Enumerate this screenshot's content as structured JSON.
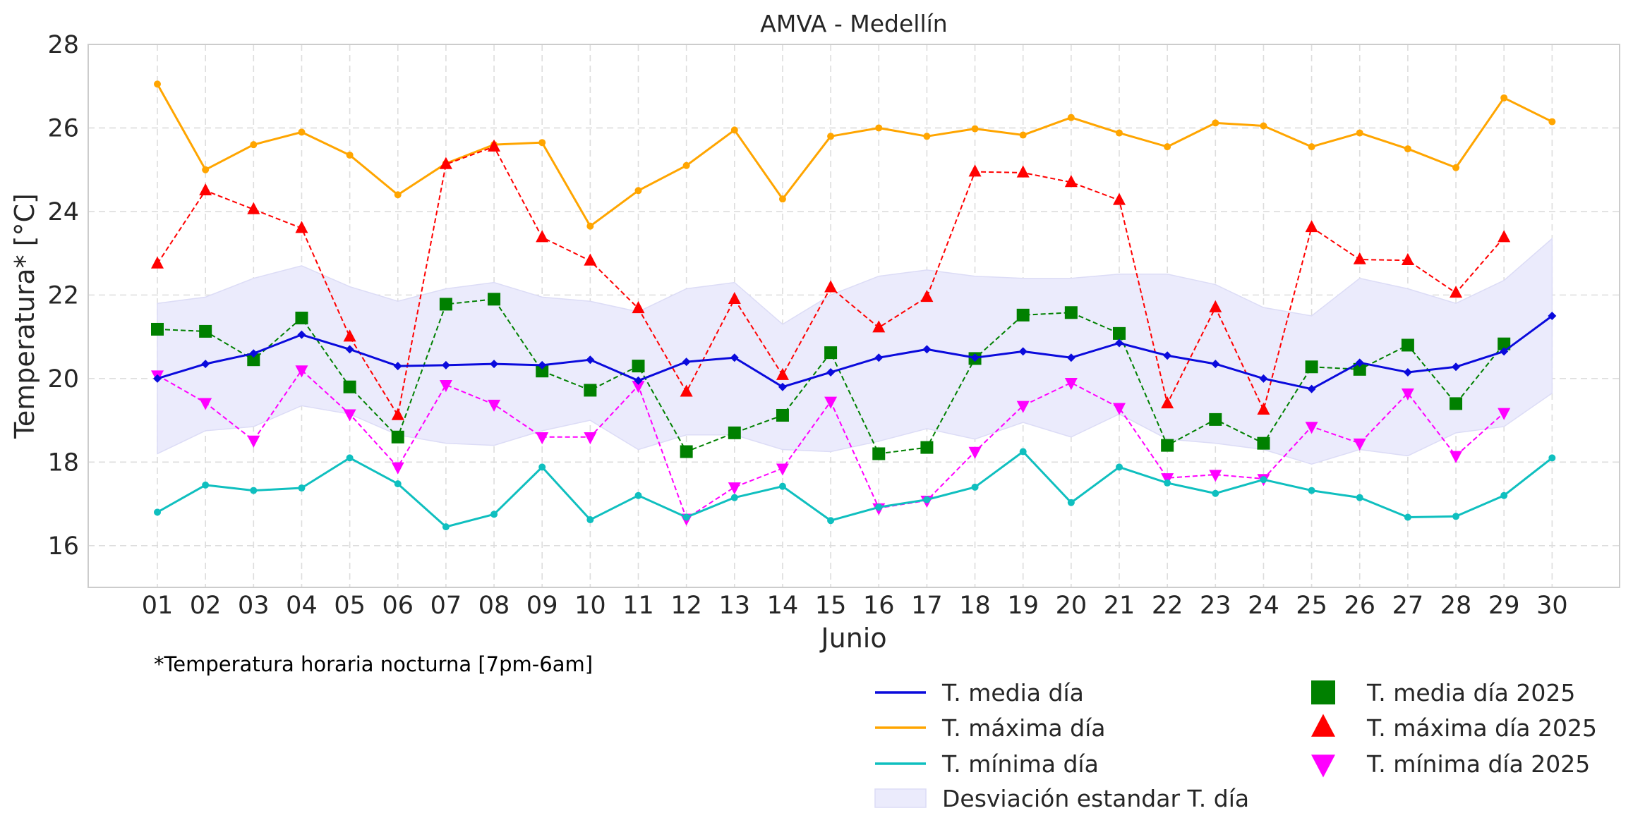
{
  "chart_data": {
    "type": "line",
    "title": "AMVA - Medellín",
    "xlabel": "Junio",
    "ylabel": "Temperatura* [°C]",
    "note": "*Temperatura horaria nocturna [7pm-6am]",
    "ylim": [
      15,
      28
    ],
    "yticks": [
      16,
      18,
      20,
      22,
      24,
      26,
      28
    ],
    "grid": true,
    "legend_position": "bottom-right, below plot",
    "categories": [
      "01",
      "02",
      "03",
      "04",
      "05",
      "06",
      "07",
      "08",
      "09",
      "10",
      "11",
      "12",
      "13",
      "14",
      "15",
      "16",
      "17",
      "18",
      "19",
      "20",
      "21",
      "22",
      "23",
      "24",
      "25",
      "26",
      "27",
      "28",
      "29",
      "30"
    ],
    "band": {
      "name": "Desviación estandar T. día",
      "color": "#ebebfc",
      "upper": [
        21.8,
        21.95,
        22.4,
        22.7,
        22.2,
        21.85,
        22.15,
        22.3,
        21.95,
        21.85,
        21.6,
        22.15,
        22.3,
        21.3,
        22.0,
        22.45,
        22.6,
        22.45,
        22.4,
        22.4,
        22.5,
        22.5,
        22.25,
        21.7,
        21.5,
        22.4,
        22.15,
        21.8,
        22.35,
        23.35
      ],
      "lower": [
        18.2,
        18.75,
        18.85,
        19.35,
        19.15,
        18.65,
        18.45,
        18.4,
        18.75,
        19.0,
        18.3,
        18.65,
        18.65,
        18.3,
        18.25,
        18.5,
        18.8,
        18.55,
        18.95,
        18.6,
        19.15,
        18.55,
        18.45,
        18.3,
        17.95,
        18.3,
        18.15,
        18.7,
        18.85,
        19.65
      ]
    },
    "series": [
      {
        "name": "T. media día",
        "color": "#0a0adc",
        "style": "solid",
        "marker": "diamond",
        "values": [
          20.0,
          20.35,
          20.6,
          21.05,
          20.7,
          20.3,
          20.32,
          20.35,
          20.32,
          20.45,
          19.95,
          20.4,
          20.5,
          19.8,
          20.15,
          20.5,
          20.7,
          20.5,
          20.65,
          20.5,
          20.85,
          20.55,
          20.35,
          20.0,
          19.75,
          20.38,
          20.15,
          20.28,
          20.65,
          21.5
        ]
      },
      {
        "name": "T. máxima día",
        "color": "#ffa500",
        "style": "solid",
        "marker": "circle",
        "values": [
          27.05,
          25.0,
          25.6,
          25.9,
          25.35,
          24.4,
          25.15,
          25.6,
          25.65,
          23.65,
          24.5,
          25.1,
          25.95,
          24.3,
          25.8,
          26.0,
          25.8,
          25.98,
          25.83,
          26.25,
          25.88,
          25.55,
          26.12,
          26.05,
          25.55,
          25.88,
          25.5,
          25.05,
          26.72,
          26.15
        ]
      },
      {
        "name": "T. mínima día",
        "color": "#0fbfbf",
        "style": "solid",
        "marker": "circle",
        "values": [
          16.8,
          17.45,
          17.32,
          17.38,
          18.1,
          17.48,
          16.45,
          16.75,
          17.88,
          16.62,
          17.2,
          16.68,
          17.15,
          17.42,
          16.6,
          16.92,
          17.1,
          17.4,
          18.25,
          17.03,
          17.88,
          17.5,
          17.25,
          17.58,
          17.32,
          17.15,
          16.68,
          16.7,
          17.2,
          18.1
        ]
      },
      {
        "name": "T. media día 2025",
        "color": "#008000",
        "style": "dashed",
        "marker": "square",
        "values": [
          21.18,
          21.13,
          20.45,
          21.45,
          19.8,
          18.6,
          21.78,
          21.9,
          20.18,
          19.72,
          20.3,
          18.25,
          18.7,
          19.12,
          20.62,
          18.2,
          18.35,
          20.48,
          21.52,
          21.58,
          21.08,
          18.4,
          19.02,
          18.45,
          20.28,
          20.22,
          20.8,
          19.4,
          20.83,
          null
        ]
      },
      {
        "name": "T. máxima día 2025",
        "color": "#ff0000",
        "style": "dashed",
        "marker": "triangle-up",
        "values": [
          22.75,
          24.5,
          24.05,
          23.6,
          21.0,
          19.12,
          25.13,
          25.55,
          23.38,
          22.82,
          21.68,
          19.68,
          21.9,
          20.08,
          22.18,
          21.22,
          21.95,
          24.95,
          24.93,
          24.7,
          24.27,
          19.4,
          21.7,
          19.25,
          23.62,
          22.85,
          22.83,
          22.05,
          23.38,
          null
        ]
      },
      {
        "name": "T. mínima día 2025",
        "color": "#ff00ff",
        "style": "dashed",
        "marker": "triangle-down",
        "values": [
          20.08,
          19.42,
          18.52,
          20.2,
          19.15,
          17.88,
          19.85,
          19.38,
          18.6,
          18.6,
          19.83,
          16.65,
          17.4,
          17.85,
          19.45,
          16.9,
          17.08,
          18.25,
          19.35,
          19.9,
          19.3,
          17.62,
          17.7,
          17.6,
          18.85,
          18.45,
          19.65,
          18.15,
          19.18,
          null
        ]
      }
    ]
  }
}
